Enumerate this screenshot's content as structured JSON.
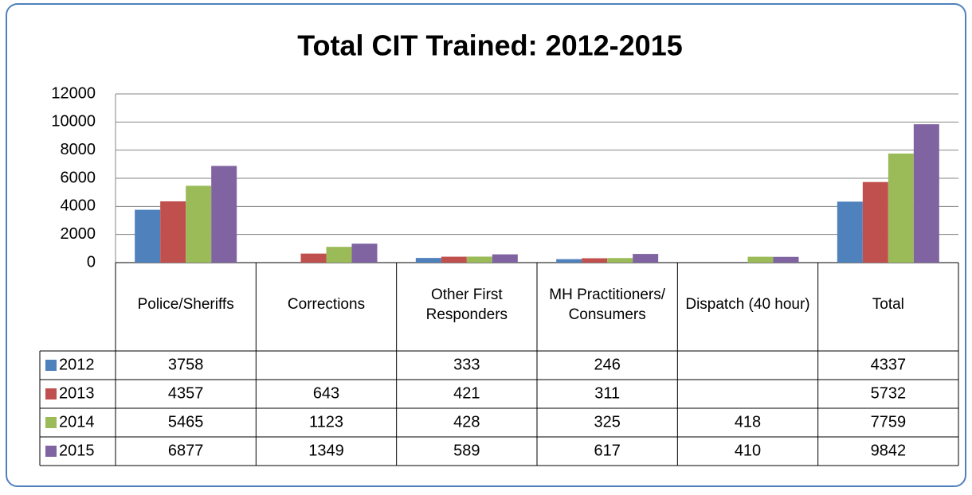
{
  "chart_data": {
    "type": "bar",
    "title": "Total CIT Trained: 2012-2015",
    "categories": [
      "Police/Sheriffs",
      "Corrections",
      "Other First Responders",
      "MH Practitioners/ Consumers",
      "Dispatch (40 hour)",
      "Total"
    ],
    "series": [
      {
        "name": "2012",
        "color": "#4f81bd",
        "values": [
          3758,
          null,
          333,
          246,
          null,
          4337
        ]
      },
      {
        "name": "2013",
        "color": "#c0504d",
        "values": [
          4357,
          643,
          421,
          311,
          null,
          5732
        ]
      },
      {
        "name": "2014",
        "color": "#9bbb59",
        "values": [
          5465,
          1123,
          428,
          325,
          418,
          7759
        ]
      },
      {
        "name": "2015",
        "color": "#8064a2",
        "values": [
          6877,
          1349,
          589,
          617,
          410,
          9842
        ]
      }
    ],
    "ylim": [
      0,
      12000
    ],
    "yticks": [
      0,
      2000,
      4000,
      6000,
      8000,
      10000,
      12000
    ],
    "grid": true
  }
}
